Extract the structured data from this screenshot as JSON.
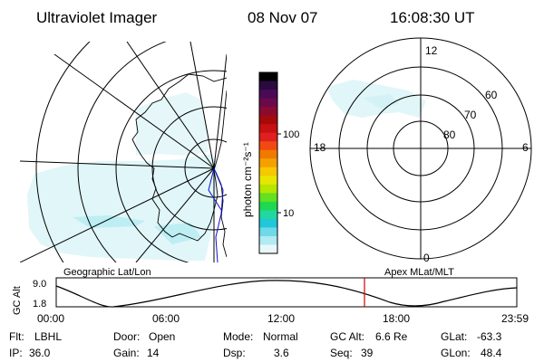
{
  "header": {
    "title": "Ultraviolet Imager",
    "date": "08 Nov 07",
    "time": "16:08:30 UT"
  },
  "left_map": {
    "label": "Geographic Lat/Lon"
  },
  "colorbar": {
    "unit_label": "photon cm⁻²s⁻¹",
    "ticks": [
      "100",
      "10"
    ],
    "colors": [
      "#000000",
      "#2a0a40",
      "#4a0a55",
      "#6a0a4a",
      "#8a0a30",
      "#a50a0a",
      "#c81010",
      "#e02020",
      "#f04a10",
      "#f07a00",
      "#f5a000",
      "#f5c800",
      "#e8e600",
      "#b4e600",
      "#64e020",
      "#20d850",
      "#20d8a0",
      "#20c8d8",
      "#70d8e8",
      "#b0eaf2",
      "#e8f8fa"
    ]
  },
  "right_map": {
    "label": "Apex MLat/MLT",
    "mlt_labels": {
      "top": "12",
      "left": "18",
      "right": "6",
      "bottom": "0"
    },
    "lat_labels": [
      "60",
      "70",
      "80"
    ]
  },
  "altitude_plot": {
    "ylabel": "GC Alt",
    "yticks": [
      "9.0",
      "1.8"
    ],
    "xticks": [
      "00:00",
      "06:00",
      "12:00",
      "18:00",
      "23:59"
    ],
    "marker_color": "#d00000"
  },
  "status": {
    "row1": [
      {
        "label": "Flt:",
        "value": "LBHL"
      },
      {
        "label": "Door:",
        "value": "Open"
      },
      {
        "label": "Mode:",
        "value": "Normal"
      },
      {
        "label": "GC Alt:",
        "value": "6.6 Re"
      },
      {
        "label": "GLat:",
        "value": "-63.3"
      }
    ],
    "row2": [
      {
        "label": "IP:",
        "value": "36.0"
      },
      {
        "label": "Gain:",
        "value": "14"
      },
      {
        "label": "Dsp:",
        "value": "3.6"
      },
      {
        "label": "Seq:",
        "value": "39"
      },
      {
        "label": "GLon:",
        "value": "48.4"
      }
    ]
  }
}
